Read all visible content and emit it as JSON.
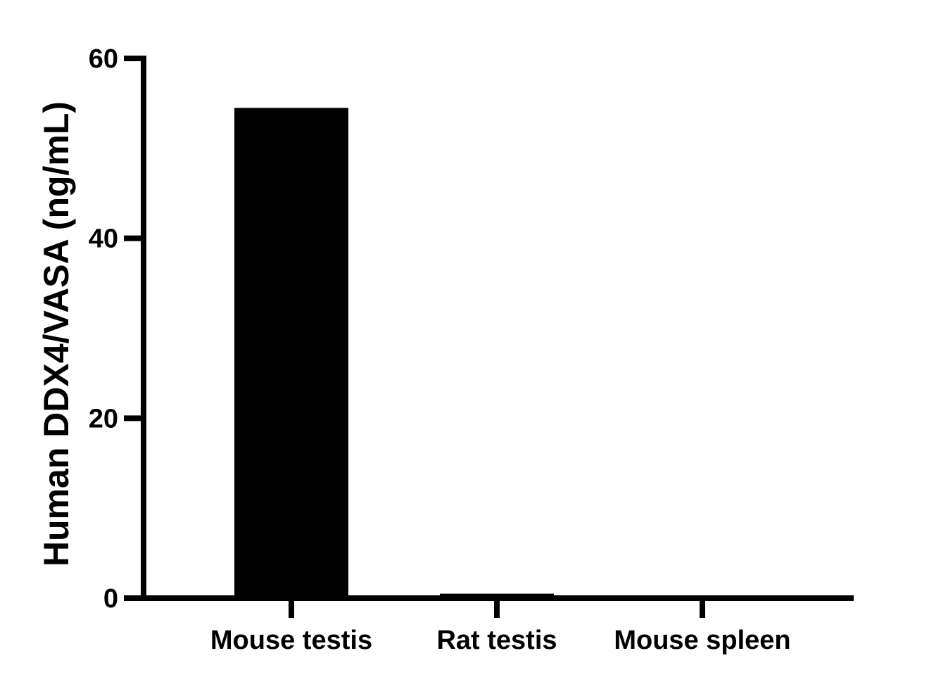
{
  "chart_data": {
    "type": "bar",
    "title": "",
    "xlabel": "",
    "ylabel": "Human DDX4/VASA (ng/mL)",
    "categories": [
      "Mouse testis",
      "Rat testis",
      "Mouse spleen"
    ],
    "values": [
      54.5,
      0.5,
      0.1
    ],
    "ylim": [
      0,
      60
    ],
    "yticks": [
      "0",
      "20",
      "40",
      "60"
    ],
    "grid": false,
    "legend": "none",
    "bar_color": "#000000",
    "axis_color": "#000000"
  }
}
